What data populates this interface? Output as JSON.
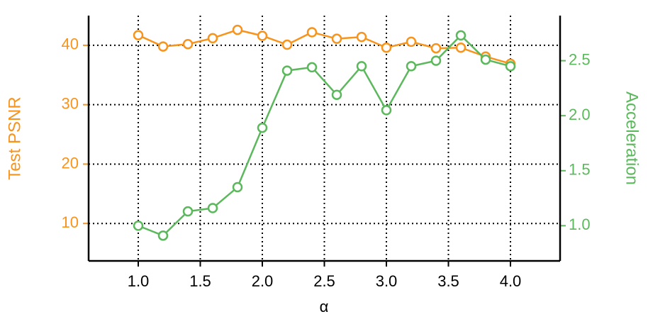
{
  "chart_data": {
    "type": "line",
    "x": [
      1.0,
      1.2,
      1.4,
      1.6,
      1.8,
      2.0,
      2.2,
      2.4,
      2.6,
      2.8,
      3.0,
      3.2,
      3.4,
      3.6,
      3.8,
      4.0
    ],
    "xlabel": "α",
    "ylabel": "Test PSNR",
    "y2label": "Acceleration",
    "xlim": [
      0.6,
      4.4
    ],
    "xticks": [
      {
        "value": 1,
        "label": "1.0"
      },
      {
        "value": 1.5,
        "label": "1.5"
      },
      {
        "value": 2,
        "label": "2.0"
      },
      {
        "value": 2.5,
        "label": "2.5"
      },
      {
        "value": 3,
        "label": "3.0"
      },
      {
        "value": 3.5,
        "label": "3.5"
      },
      {
        "value": 4,
        "label": "4.0"
      }
    ],
    "ylim": [
      3.7,
      45
    ],
    "yticks": [
      10,
      20,
      30,
      40
    ],
    "y2lim": [
      0.68,
      2.91
    ],
    "y2ticks": [
      {
        "value": 1,
        "label": "1.0"
      },
      1.5,
      {
        "value": 2,
        "label": "2.0"
      },
      2.5
    ],
    "grid": true,
    "series": [
      {
        "color": "#f7941d",
        "values": [
          41.7,
          39.8,
          40.2,
          41.2,
          42.6,
          41.6,
          40.1,
          42.2,
          41.1,
          41.4,
          39.6,
          40.6,
          39.5,
          39.6,
          38.1,
          36.9
        ]
      },
      {
        "color": "#5cb85c",
        "axis": "y2",
        "values": [
          1.0,
          0.91,
          1.13,
          1.16,
          1.35,
          1.89,
          2.41,
          2.44,
          2.19,
          2.45,
          2.05,
          2.45,
          2.5,
          2.73,
          2.51,
          2.45
        ]
      }
    ]
  }
}
